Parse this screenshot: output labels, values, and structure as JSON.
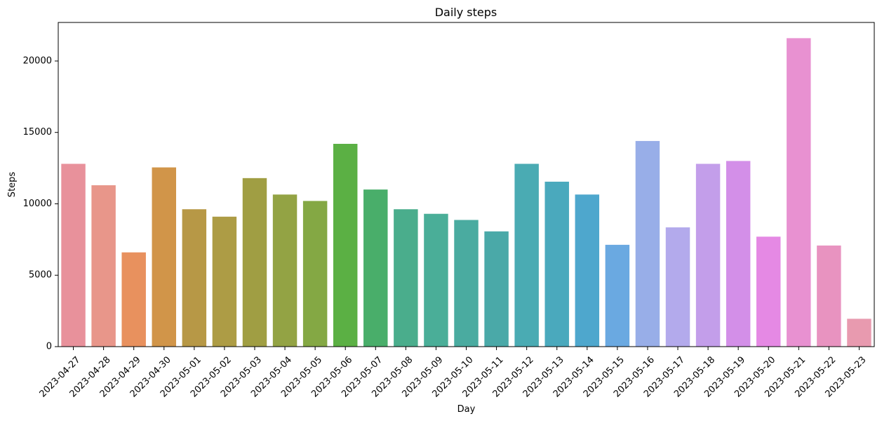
{
  "chart_data": {
    "type": "bar",
    "title": "Daily steps",
    "xlabel": "Day",
    "ylabel": "Steps",
    "ylim": [
      0,
      22700
    ],
    "yticks": [
      0,
      5000,
      10000,
      15000,
      20000
    ],
    "grid": false,
    "legend": "none",
    "categories": [
      "2023-04-27",
      "2023-04-28",
      "2023-04-29",
      "2023-04-30",
      "2023-05-01",
      "2023-05-02",
      "2023-05-03",
      "2023-05-04",
      "2023-05-05",
      "2023-05-06",
      "2023-05-07",
      "2023-05-08",
      "2023-05-09",
      "2023-05-10",
      "2023-05-11",
      "2023-05-12",
      "2023-05-13",
      "2023-05-14",
      "2023-05-15",
      "2023-05-16",
      "2023-05-17",
      "2023-05-18",
      "2023-05-19",
      "2023-05-20",
      "2023-05-21",
      "2023-05-22",
      "2023-05-23"
    ],
    "values": [
      12800,
      11300,
      6600,
      12550,
      9620,
      9100,
      11800,
      10650,
      10200,
      14200,
      11000,
      9620,
      9300,
      8870,
      8070,
      12800,
      11550,
      10650,
      7130,
      14400,
      8350,
      12800,
      13000,
      7700,
      21600,
      7080,
      1950
    ],
    "colors": [
      "#e8919b",
      "#e8968a",
      "#e8915e",
      "#d19549",
      "#b79846",
      "#ad9c45",
      "#a09e43",
      "#93a344",
      "#84a844",
      "#5bb044",
      "#49ae6a",
      "#4aad8c",
      "#4aae98",
      "#4aaba0",
      "#4aa9a8",
      "#4aabb3",
      "#4aa9bd",
      "#4ea7cd",
      "#6aa9e1",
      "#98aee8",
      "#b3aaec",
      "#c39eea",
      "#d38fe8",
      "#e589e4",
      "#e891d1",
      "#e893c0",
      "#e89aaf"
    ]
  }
}
